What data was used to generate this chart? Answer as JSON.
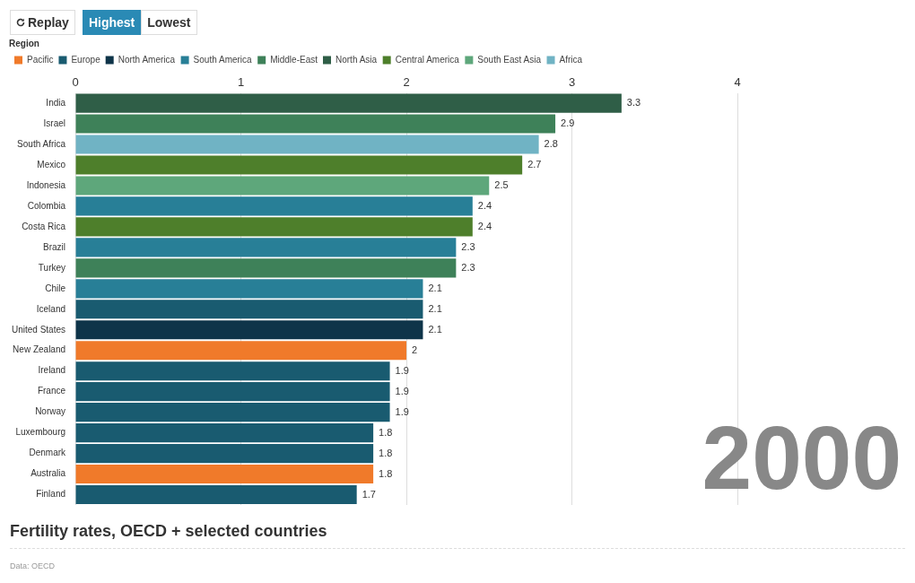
{
  "chart_data": {
    "type": "bar",
    "orientation": "horizontal",
    "stacked": true,
    "title": "Fertility rates, OECD + selected countries",
    "legend_title": "Region",
    "legend": "top left",
    "grid": "x",
    "data_labels": true,
    "annotations": [
      "Replay",
      "Highest",
      "Lowest",
      "2000",
      "Data: OECD"
    ],
    "categories": [
      "India",
      "Israel",
      "South Africa",
      "Mexico",
      "Indonesia",
      "Colombia",
      "Costa Rica",
      "Brazil",
      "Turkey",
      "Chile",
      "Iceland",
      "United States",
      "New Zealand",
      "Ireland",
      "France",
      "Norway",
      "Luxembourg",
      "Denmark",
      "Australia",
      "Finland"
    ],
    "xlim": [
      0,
      4
    ],
    "xticks": [
      0,
      1,
      2,
      3,
      4
    ],
    "series": [
      {
        "name": "Pacific",
        "color": "#f07a2a",
        "values": [
          null,
          null,
          null,
          null,
          null,
          null,
          null,
          null,
          null,
          null,
          null,
          null,
          2,
          null,
          null,
          null,
          null,
          null,
          1.8,
          null
        ]
      },
      {
        "name": "Europe",
        "color": "#195b70",
        "values": [
          null,
          null,
          null,
          null,
          null,
          null,
          null,
          null,
          null,
          null,
          2.1,
          null,
          null,
          1.9,
          1.9,
          1.9,
          1.8,
          1.8,
          null,
          1.7
        ]
      },
      {
        "name": "North America",
        "color": "#0e3449",
        "values": [
          null,
          null,
          null,
          null,
          null,
          null,
          null,
          null,
          null,
          null,
          null,
          2.1,
          null,
          null,
          null,
          null,
          null,
          null,
          null,
          null
        ]
      },
      {
        "name": "South America",
        "color": "#287f97",
        "values": [
          null,
          null,
          null,
          null,
          null,
          2.4,
          null,
          2.3,
          null,
          2.1,
          null,
          null,
          null,
          null,
          null,
          null,
          null,
          null,
          null,
          null
        ]
      },
      {
        "name": "Middle-East",
        "color": "#3e8159",
        "values": [
          null,
          2.9,
          null,
          null,
          null,
          null,
          null,
          null,
          2.3,
          null,
          null,
          null,
          null,
          null,
          null,
          null,
          null,
          null,
          null,
          null
        ]
      },
      {
        "name": "North Asia",
        "color": "#2f5e47",
        "values": [
          3.3,
          null,
          null,
          null,
          null,
          null,
          null,
          null,
          null,
          null,
          null,
          null,
          null,
          null,
          null,
          null,
          null,
          null,
          null,
          null
        ]
      },
      {
        "name": "Central America",
        "color": "#4e7f2b",
        "values": [
          null,
          null,
          null,
          2.7,
          null,
          null,
          2.4,
          null,
          null,
          null,
          null,
          null,
          null,
          null,
          null,
          null,
          null,
          null,
          null,
          null
        ]
      },
      {
        "name": "South East Asia",
        "color": "#5ea77b",
        "values": [
          null,
          null,
          null,
          null,
          2.5,
          null,
          null,
          null,
          null,
          null,
          null,
          null,
          null,
          null,
          null,
          null,
          null,
          null,
          null,
          null
        ]
      },
      {
        "name": "Africa",
        "color": "#70b3c4",
        "values": [
          null,
          null,
          2.8,
          null,
          null,
          null,
          null,
          null,
          null,
          null,
          null,
          null,
          null,
          null,
          null,
          null,
          null,
          null,
          null,
          null
        ]
      }
    ]
  }
}
